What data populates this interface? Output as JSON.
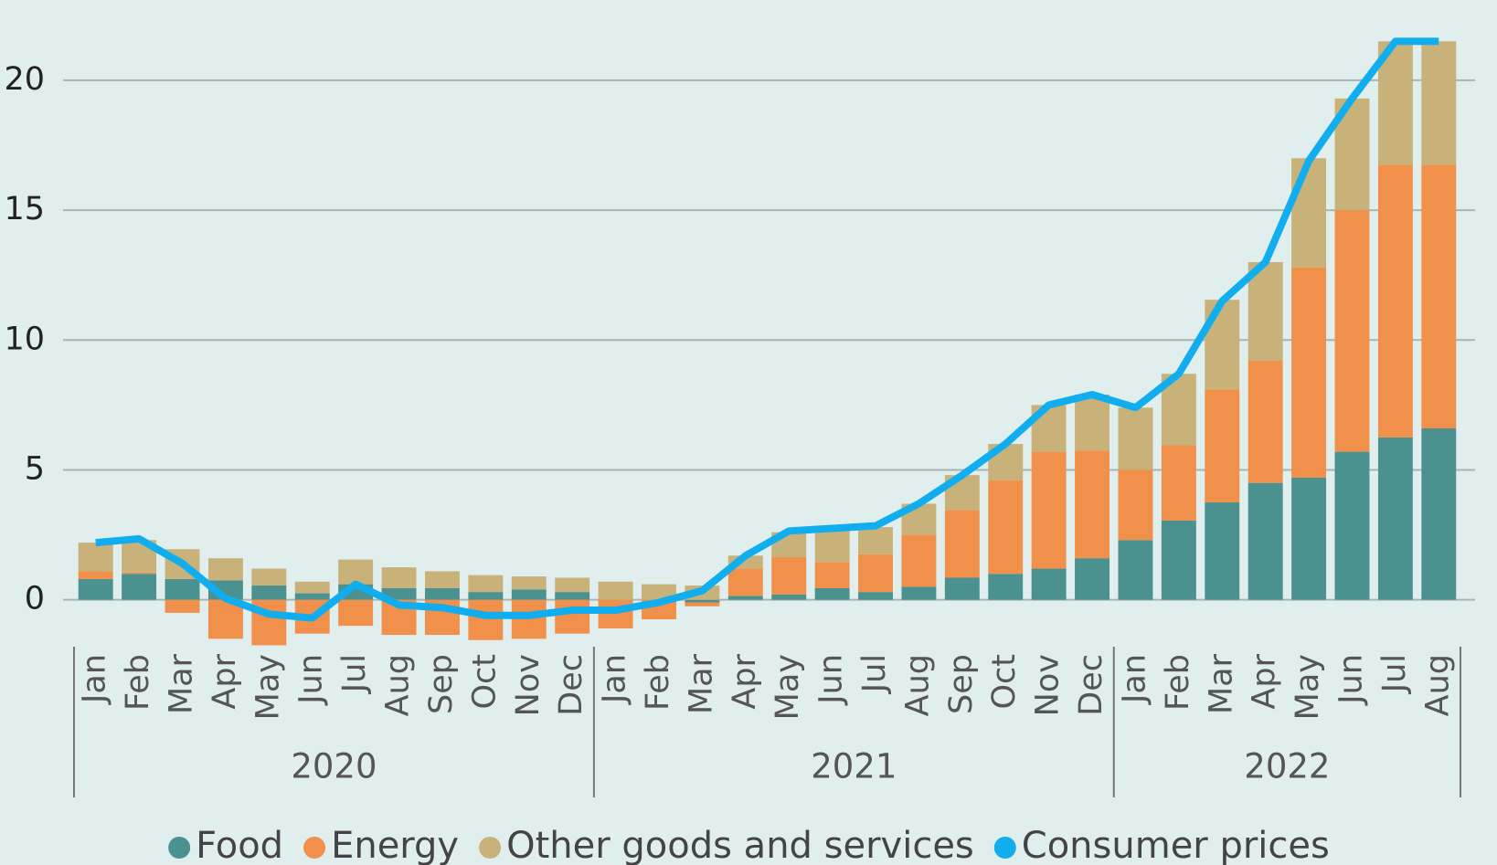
{
  "chart_data": {
    "type": "bar",
    "stacked": true,
    "categories": [
      "Jan",
      "Feb",
      "Mar",
      "Apr",
      "May",
      "Jun",
      "Jul",
      "Aug",
      "Sep",
      "Oct",
      "Nov",
      "Dec",
      "Jan",
      "Feb",
      "Mar",
      "Apr",
      "May",
      "Jun",
      "Jul",
      "Aug",
      "Sep",
      "Oct",
      "Nov",
      "Dec",
      "Jan",
      "Feb",
      "Mar",
      "Apr",
      "May",
      "Jun",
      "Jul",
      "Aug"
    ],
    "years": [
      "2020",
      "2021",
      "2022"
    ],
    "series": [
      {
        "name": "Food",
        "type": "bar",
        "color": "#4a9190",
        "values": [
          0.8,
          1.0,
          0.8,
          0.75,
          0.55,
          0.25,
          0.6,
          0.45,
          0.45,
          0.3,
          0.4,
          0.3,
          0.0,
          0.0,
          -0.1,
          0.15,
          0.2,
          0.45,
          0.3,
          0.5,
          0.85,
          1.0,
          1.2,
          1.6,
          2.3,
          3.05,
          3.75,
          4.5,
          4.7,
          5.7,
          6.25,
          6.6
        ]
      },
      {
        "name": "Energy",
        "type": "bar",
        "color": "#f0904a",
        "values": [
          0.3,
          0.05,
          -0.5,
          -1.5,
          -1.75,
          -1.3,
          -1.0,
          -1.35,
          -1.35,
          -1.55,
          -1.5,
          -1.3,
          -1.1,
          -0.75,
          -0.15,
          1.05,
          1.45,
          1.0,
          1.45,
          2.0,
          2.6,
          3.6,
          4.5,
          4.15,
          2.7,
          2.9,
          4.35,
          4.7,
          8.1,
          9.3,
          10.5,
          10.15
        ]
      },
      {
        "name": "Other goods and services",
        "type": "bar",
        "color": "#c8b27a",
        "values": [
          1.1,
          1.25,
          1.15,
          0.85,
          0.65,
          0.45,
          0.95,
          0.8,
          0.65,
          0.65,
          0.5,
          0.55,
          0.7,
          0.6,
          0.55,
          0.5,
          0.95,
          1.2,
          1.05,
          1.2,
          1.35,
          1.4,
          1.8,
          2.15,
          2.4,
          2.75,
          3.45,
          3.8,
          4.2,
          4.3,
          4.75,
          4.75
        ]
      },
      {
        "name": "Consumer prices",
        "type": "line",
        "color": "#11aeef",
        "values": [
          2.2,
          2.35,
          1.4,
          0.05,
          -0.55,
          -0.7,
          0.6,
          -0.2,
          -0.3,
          -0.6,
          -0.6,
          -0.4,
          -0.4,
          -0.1,
          0.35,
          1.7,
          2.65,
          2.75,
          2.85,
          3.7,
          4.8,
          6.0,
          7.5,
          7.9,
          7.4,
          8.7,
          11.5,
          13.0,
          16.9,
          19.3,
          21.5,
          21.5
        ]
      }
    ],
    "ylim": [
      -3,
      22
    ],
    "yticks": [
      0,
      5,
      10,
      15,
      20
    ],
    "grid": true,
    "legend": "bottom"
  }
}
